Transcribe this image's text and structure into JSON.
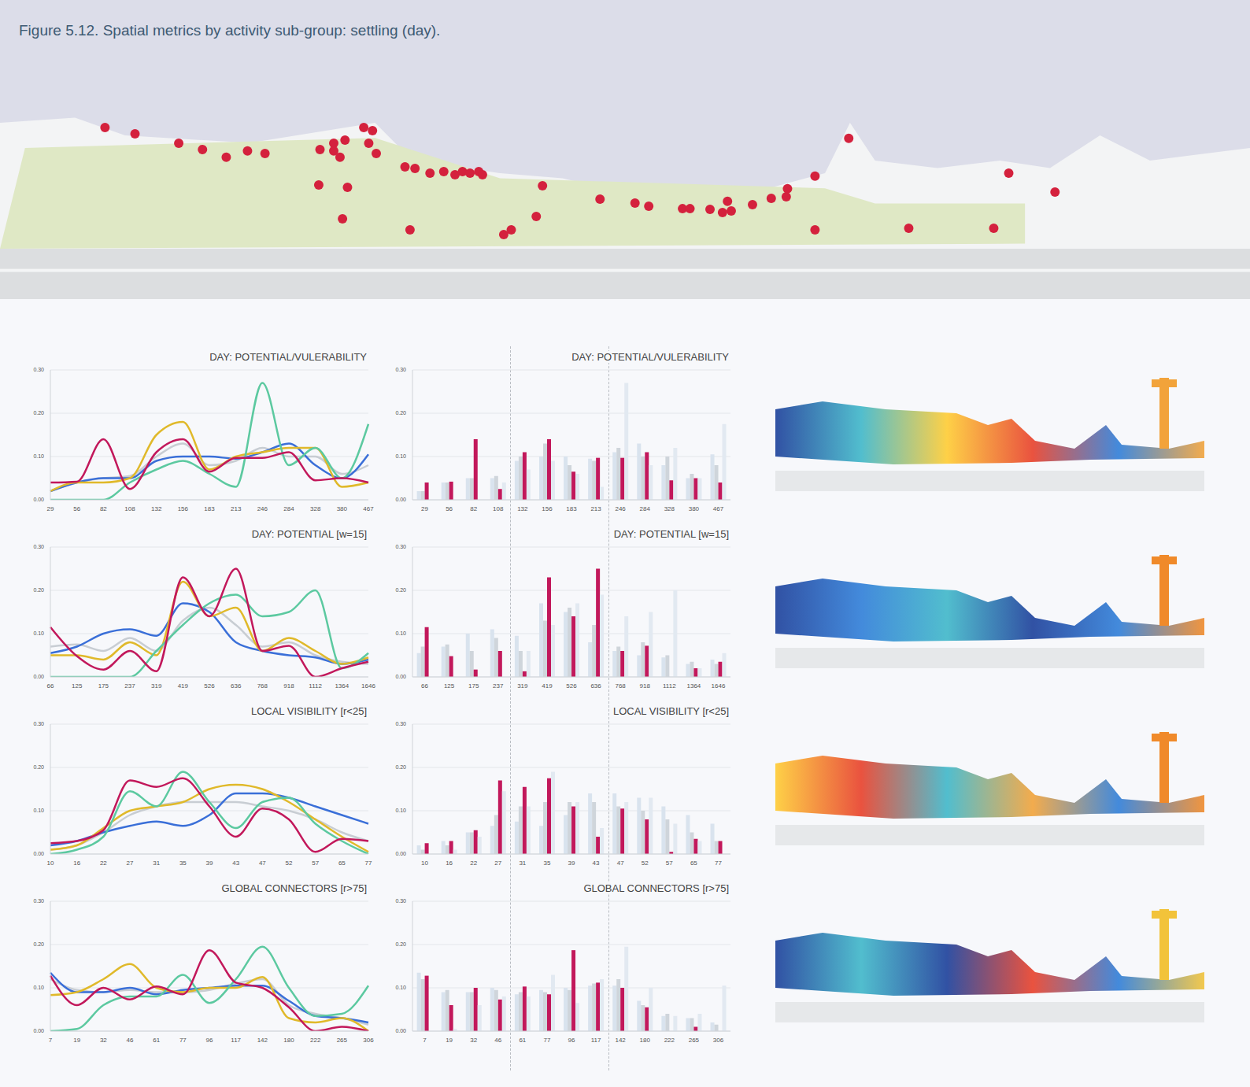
{
  "title": "Figure 5.12. Spatial metrics by activity sub-group: settling (day).",
  "chart_data": [
    {
      "type": "scatter",
      "x": [
        8.4,
        10.8,
        14.3,
        16.2,
        18.1,
        19.8,
        21.2,
        25.6,
        26.7,
        27.6,
        26.7,
        27.2,
        29.1,
        29.8,
        29.5,
        30.1,
        32.4,
        33.2,
        34.4,
        35.5,
        36.4,
        37.0,
        37.6,
        38.3,
        38.6,
        25.5,
        27.8,
        27.4,
        32.8,
        40.3,
        40.9,
        42.9,
        43.4,
        48.0,
        50.8,
        51.9,
        54.6,
        55.2,
        56.8,
        57.8,
        58.2,
        58.5,
        60.2,
        61.7,
        62.9,
        63.0,
        65.2,
        67.9,
        65.2,
        72.7,
        79.5,
        80.7,
        84.4
      ],
      "y": [
        68.1,
        65.6,
        61.9,
        59.4,
        56.3,
        58.8,
        57.8,
        59.4,
        61.9,
        63.1,
        58.8,
        56.3,
        68.1,
        66.9,
        61.9,
        57.8,
        52.5,
        51.9,
        50.0,
        50.6,
        49.4,
        50.6,
        50.0,
        50.6,
        49.4,
        45.3,
        44.4,
        31.9,
        27.5,
        25.6,
        27.5,
        32.8,
        45.0,
        39.7,
        38.1,
        36.9,
        35.9,
        35.9,
        35.6,
        34.4,
        38.8,
        35.0,
        37.5,
        40.0,
        40.6,
        43.8,
        48.8,
        63.8,
        27.5,
        28.1,
        28.1,
        50.0,
        42.5
      ],
      "color": "#d4213d",
      "xlim": [
        0,
        100
      ],
      "ylim": [
        0,
        100
      ],
      "tick_labels": false
    },
    {
      "type": "line",
      "title": "DAY: POTENTIAL/VULERABILITY",
      "categories": [
        29,
        56,
        82,
        108,
        132,
        156,
        183,
        213,
        246,
        284,
        328,
        380,
        467
      ],
      "series": [
        {
          "color": "#c8cdd3",
          "values": [
            0.02,
            0.04,
            0.05,
            0.055,
            0.1,
            0.13,
            0.08,
            0.09,
            0.12,
            0.1,
            0.1,
            0.06,
            0.08
          ]
        },
        {
          "color": "#3a6fd8",
          "values": [
            0.02,
            0.04,
            0.05,
            0.05,
            0.09,
            0.1,
            0.1,
            0.095,
            0.11,
            0.13,
            0.08,
            0.05,
            0.105
          ]
        },
        {
          "color": "#e0b92a",
          "values": [
            0.02,
            0.04,
            0.04,
            0.05,
            0.15,
            0.18,
            0.07,
            0.1,
            0.11,
            0.12,
            0.12,
            0.03,
            0.04
          ]
        },
        {
          "color": "#5cc9a0",
          "values": [
            0,
            0,
            0,
            0.04,
            0.07,
            0.09,
            0.06,
            0.03,
            0.27,
            0.08,
            0.12,
            0.05,
            0.175
          ]
        },
        {
          "color": "#c2185b",
          "values": [
            0.04,
            0.042,
            0.14,
            0.025,
            0.11,
            0.14,
            0.065,
            0.097,
            0.097,
            0.11,
            0.045,
            0.05,
            0.04
          ]
        }
      ],
      "ylim": [
        0,
        0.3
      ],
      "yticks": [
        {
          "value": 0,
          "label": "0.00"
        },
        {
          "value": 0.1,
          "label": "0.10"
        },
        {
          "value": 0.2,
          "label": "0.20"
        },
        {
          "value": 0.3,
          "label": "0.30"
        }
      ],
      "grid": true
    },
    {
      "type": "bar",
      "title": "DAY: POTENTIAL/VULERABILITY",
      "categories": [
        29,
        56,
        82,
        108,
        132,
        156,
        183,
        213,
        246,
        284,
        328,
        380,
        467
      ],
      "series": [
        {
          "color": "#d9e3ee",
          "values": [
            0.02,
            0.04,
            0.05,
            0.05,
            0.09,
            0.1,
            0.1,
            0.095,
            0.11,
            0.13,
            0.08,
            0.05,
            0.105
          ]
        },
        {
          "color": "#cfd5db",
          "values": [
            0.02,
            0.04,
            0.05,
            0.055,
            0.1,
            0.13,
            0.08,
            0.09,
            0.12,
            0.1,
            0.1,
            0.06,
            0.08
          ]
        },
        {
          "color": "#c2185b",
          "values": [
            0.04,
            0.042,
            0.14,
            0.025,
            0.11,
            0.14,
            0.065,
            0.097,
            0.097,
            0.11,
            0.045,
            0.05,
            0.04
          ]
        },
        {
          "color": "#e2e9f1",
          "values": [
            0,
            0,
            0,
            0.04,
            0.07,
            0.09,
            0.06,
            0.03,
            0.27,
            0.08,
            0.12,
            0.05,
            0.175
          ]
        }
      ],
      "ylim": [
        0,
        0.3
      ],
      "yticks": [
        {
          "value": 0,
          "label": "0.00"
        },
        {
          "value": 0.1,
          "label": "0.10"
        },
        {
          "value": 0.2,
          "label": "0.20"
        },
        {
          "value": 0.3,
          "label": "0.30"
        }
      ],
      "grid": true
    },
    {
      "type": "line",
      "title": "DAY: POTENTIAL [w=15]",
      "categories": [
        66,
        125,
        175,
        237,
        319,
        419,
        526,
        636,
        768,
        918,
        1112,
        1364,
        1646
      ],
      "series": [
        {
          "color": "#c8cdd3",
          "values": [
            0.07,
            0.075,
            0.06,
            0.09,
            0.06,
            0.13,
            0.16,
            0.12,
            0.07,
            0.08,
            0.05,
            0.035,
            0.03
          ]
        },
        {
          "color": "#3a6fd8",
          "values": [
            0.055,
            0.07,
            0.1,
            0.11,
            0.095,
            0.17,
            0.15,
            0.08,
            0.06,
            0.05,
            0.045,
            0.03,
            0.04
          ]
        },
        {
          "color": "#e0b92a",
          "values": [
            0.05,
            0.05,
            0.04,
            0.08,
            0.05,
            0.22,
            0.14,
            0.16,
            0.06,
            0.09,
            0.06,
            0.03,
            0.045
          ]
        },
        {
          "color": "#5cc9a0",
          "values": [
            0,
            0,
            0,
            0,
            0.06,
            0.12,
            0.17,
            0.19,
            0.14,
            0.15,
            0.2,
            0.02,
            0.055
          ]
        },
        {
          "color": "#c2185b",
          "values": [
            0.115,
            0.048,
            0.017,
            0.06,
            0.013,
            0.23,
            0.14,
            0.25,
            0.06,
            0.072,
            0,
            0.02,
            0.035
          ]
        }
      ],
      "ylim": [
        0,
        0.3
      ],
      "yticks": [
        {
          "value": 0,
          "label": "0.00"
        },
        {
          "value": 0.1,
          "label": "0.10"
        },
        {
          "value": 0.2,
          "label": "0.20"
        },
        {
          "value": 0.3,
          "label": "0.30"
        }
      ],
      "grid": true
    },
    {
      "type": "bar",
      "title": "DAY: POTENTIAL [w=15]",
      "categories": [
        66,
        125,
        175,
        237,
        319,
        419,
        526,
        636,
        768,
        918,
        1112,
        1364,
        1646
      ],
      "series": [
        {
          "color": "#d9e3ee",
          "values": [
            0.055,
            0.07,
            0.1,
            0.11,
            0.095,
            0.17,
            0.15,
            0.08,
            0.06,
            0.05,
            0.045,
            0.03,
            0.04
          ]
        },
        {
          "color": "#cfd5db",
          "values": [
            0.07,
            0.075,
            0.06,
            0.09,
            0.06,
            0.13,
            0.16,
            0.12,
            0.07,
            0.08,
            0.05,
            0.035,
            0.03
          ]
        },
        {
          "color": "#c2185b",
          "values": [
            0.115,
            0.048,
            0.017,
            0.06,
            0.013,
            0.23,
            0.14,
            0.25,
            0.06,
            0.072,
            0,
            0.02,
            0.035
          ]
        },
        {
          "color": "#e2e9f1",
          "values": [
            0,
            0,
            0,
            0,
            0.06,
            0.12,
            0.17,
            0.19,
            0.14,
            0.15,
            0.2,
            0.02,
            0.055
          ]
        }
      ],
      "ylim": [
        0,
        0.3
      ],
      "yticks": [
        {
          "value": 0,
          "label": "0.00"
        },
        {
          "value": 0.1,
          "label": "0.10"
        },
        {
          "value": 0.2,
          "label": "0.20"
        },
        {
          "value": 0.3,
          "label": "0.30"
        }
      ],
      "grid": true
    },
    {
      "type": "line",
      "title": "LOCAL VISIBILITY [r<25]",
      "categories": [
        10,
        16,
        22,
        27,
        31,
        35,
        39,
        43,
        47,
        52,
        57,
        65,
        77
      ],
      "series": [
        {
          "color": "#c8cdd3",
          "values": [
            0.01,
            0.02,
            0.05,
            0.09,
            0.11,
            0.12,
            0.12,
            0.12,
            0.11,
            0.1,
            0.08,
            0.05,
            0.03
          ]
        },
        {
          "color": "#3a6fd8",
          "values": [
            0.02,
            0.03,
            0.05,
            0.065,
            0.075,
            0.065,
            0.09,
            0.14,
            0.14,
            0.13,
            0.11,
            0.09,
            0.07
          ]
        },
        {
          "color": "#e0b92a",
          "values": [
            0.01,
            0.02,
            0.06,
            0.1,
            0.11,
            0.12,
            0.15,
            0.16,
            0.15,
            0.12,
            0.08,
            0.04,
            0.005
          ]
        },
        {
          "color": "#5cc9a0",
          "values": [
            0,
            0.01,
            0.04,
            0.145,
            0.11,
            0.19,
            0.12,
            0.06,
            0.12,
            0.13,
            0.07,
            0.03,
            0
          ]
        },
        {
          "color": "#c2185b",
          "values": [
            0.025,
            0.03,
            0.055,
            0.17,
            0.155,
            0.175,
            0.11,
            0.04,
            0.105,
            0.08,
            0.005,
            0.035,
            0.03
          ]
        }
      ],
      "ylim": [
        0,
        0.3
      ],
      "yticks": [
        {
          "value": 0,
          "label": "0.00"
        },
        {
          "value": 0.1,
          "label": "0.10"
        },
        {
          "value": 0.2,
          "label": "0.20"
        },
        {
          "value": 0.3,
          "label": "0.30"
        }
      ],
      "grid": true
    },
    {
      "type": "bar",
      "title": "LOCAL VISIBILITY [r<25]",
      "categories": [
        10,
        16,
        22,
        27,
        31,
        35,
        39,
        43,
        47,
        52,
        57,
        65,
        77
      ],
      "series": [
        {
          "color": "#d9e3ee",
          "values": [
            0.02,
            0.03,
            0.05,
            0.065,
            0.075,
            0.065,
            0.09,
            0.14,
            0.14,
            0.13,
            0.11,
            0.09,
            0.07
          ]
        },
        {
          "color": "#cfd5db",
          "values": [
            0.01,
            0.02,
            0.05,
            0.09,
            0.11,
            0.12,
            0.12,
            0.12,
            0.11,
            0.1,
            0.08,
            0.05,
            0.03
          ]
        },
        {
          "color": "#c2185b",
          "values": [
            0.025,
            0.03,
            0.055,
            0.17,
            0.155,
            0.175,
            0.11,
            0.04,
            0.105,
            0.08,
            0.005,
            0.035,
            0.03
          ]
        },
        {
          "color": "#e2e9f1",
          "values": [
            0,
            0.01,
            0.04,
            0.145,
            0.11,
            0.19,
            0.12,
            0.06,
            0.12,
            0.13,
            0.07,
            0.03,
            0
          ]
        }
      ],
      "ylim": [
        0,
        0.3
      ],
      "yticks": [
        {
          "value": 0,
          "label": "0.00"
        },
        {
          "value": 0.1,
          "label": "0.10"
        },
        {
          "value": 0.2,
          "label": "0.20"
        },
        {
          "value": 0.3,
          "label": "0.30"
        }
      ],
      "grid": true
    },
    {
      "type": "line",
      "title": "GLOBAL CONNECTORS [r>75]",
      "categories": [
        7,
        19,
        32,
        46,
        61,
        77,
        96,
        117,
        142,
        180,
        222,
        265,
        306
      ],
      "series": [
        {
          "color": "#c8cdd3",
          "values": [
            0.12,
            0.095,
            0.09,
            0.095,
            0.09,
            0.09,
            0.095,
            0.11,
            0.12,
            0.06,
            0.04,
            0.03,
            0.015
          ]
        },
        {
          "color": "#3a6fd8",
          "values": [
            0.135,
            0.09,
            0.09,
            0.1,
            0.085,
            0.095,
            0.1,
            0.105,
            0.105,
            0.07,
            0.035,
            0.03,
            0.02
          ]
        },
        {
          "color": "#e0b92a",
          "values": [
            0.083,
            0.09,
            0.12,
            0.155,
            0.1,
            0.09,
            0.1,
            0.1,
            0.125,
            0.03,
            0.02,
            0.03,
            0
          ]
        },
        {
          "color": "#5cc9a0",
          "values": [
            0,
            0.005,
            0.06,
            0.08,
            0.08,
            0.13,
            0.065,
            0.12,
            0.195,
            0.1,
            0.035,
            0.04,
            0.105
          ]
        },
        {
          "color": "#c2185b",
          "values": [
            0.128,
            0.06,
            0.1,
            0.073,
            0.103,
            0.085,
            0.187,
            0.112,
            0.1,
            0.055,
            0,
            0.01,
            0
          ]
        }
      ],
      "ylim": [
        0,
        0.3
      ],
      "yticks": [
        {
          "value": 0,
          "label": "0.00"
        },
        {
          "value": 0.1,
          "label": "0.10"
        },
        {
          "value": 0.2,
          "label": "0.20"
        },
        {
          "value": 0.3,
          "label": "0.30"
        }
      ],
      "grid": true
    },
    {
      "type": "bar",
      "title": "GLOBAL CONNECTORS [r>75]",
      "categories": [
        7,
        19,
        32,
        46,
        61,
        77,
        96,
        117,
        142,
        180,
        222,
        265,
        306
      ],
      "series": [
        {
          "color": "#d9e3ee",
          "values": [
            0.135,
            0.09,
            0.09,
            0.1,
            0.085,
            0.095,
            0.1,
            0.105,
            0.105,
            0.07,
            0.035,
            0.03,
            0.02
          ]
        },
        {
          "color": "#cfd5db",
          "values": [
            0.12,
            0.095,
            0.09,
            0.095,
            0.09,
            0.09,
            0.095,
            0.11,
            0.12,
            0.06,
            0.04,
            0.03,
            0.015
          ]
        },
        {
          "color": "#c2185b",
          "values": [
            0.128,
            0.06,
            0.1,
            0.073,
            0.103,
            0.085,
            0.187,
            0.112,
            0.1,
            0.055,
            0,
            0.01,
            0
          ]
        },
        {
          "color": "#e2e9f1",
          "values": [
            0,
            0.005,
            0.06,
            0.08,
            0.08,
            0.13,
            0.065,
            0.12,
            0.195,
            0.1,
            0.035,
            0.04,
            0.105
          ]
        }
      ],
      "ylim": [
        0,
        0.3
      ],
      "yticks": [
        {
          "value": 0,
          "label": "0.00"
        },
        {
          "value": 0.1,
          "label": "0.10"
        },
        {
          "value": 0.2,
          "label": "0.20"
        },
        {
          "value": 0.3,
          "label": "0.30"
        }
      ],
      "grid": true
    }
  ]
}
